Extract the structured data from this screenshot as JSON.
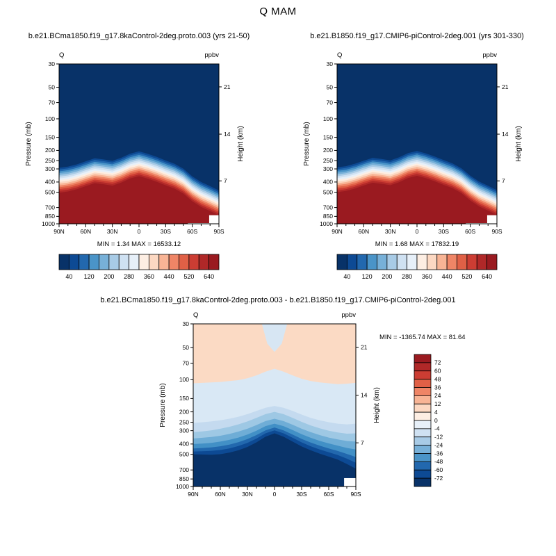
{
  "title": "Q MAM",
  "chart_data": [
    {
      "type": "contour",
      "id": "control-8ka",
      "title": "b.e21.BCma1850.f19_g17.8kaControl-2deg.proto.003 (yrs 21-50)",
      "var_label": "Q",
      "units": "ppbv",
      "stats": "MIN =  1.34  MAX = 16533.12",
      "axes": {
        "ylabel": "Pressure (mb)",
        "right_label": "Height (km)",
        "y_range": [
          30,
          1000
        ],
        "y_ticks": [
          30,
          50,
          70,
          100,
          150,
          200,
          250,
          300,
          400,
          500,
          700,
          850,
          1000
        ],
        "height_ticks": [
          {
            "label": "21",
            "p": 49.6
          },
          {
            "label": "14",
            "p": 140
          },
          {
            "label": "7",
            "p": 390
          }
        ],
        "x_ticks": [
          "90N",
          "60N",
          "30N",
          "0",
          "30S",
          "60S",
          "90S"
        ],
        "x_tick_lats": [
          90,
          60,
          30,
          0,
          -30,
          -60,
          -90
        ]
      },
      "lats": [
        90,
        80,
        70,
        60,
        50,
        40,
        30,
        20,
        10,
        0,
        -10,
        -20,
        -30,
        -40,
        -50,
        -60,
        -70,
        -80,
        -90
      ],
      "red_top": [
        505,
        492,
        468,
        438,
        410,
        420,
        433,
        405,
        370,
        352,
        372,
        398,
        430,
        462,
        515,
        610,
        690,
        755,
        830
      ],
      "band_factor": 0.58,
      "surface": [
        {
          "lats": [
            -79,
            -90
          ],
          "p_top": 828
        },
        {
          "lats": [
            -55,
            -90
          ],
          "p_top": 985
        }
      ],
      "palette": [
        "#083268",
        "#0d4a94",
        "#2268ae",
        "#4a94c8",
        "#77b0d8",
        "#a8cbe6",
        "#cfe1f2",
        "#e7f0f9",
        "#fdeee3",
        "#fcd8c2",
        "#f8b495",
        "#ef8566",
        "#e06046",
        "#cc3d33",
        "#b02828",
        "#9a1a20"
      ],
      "colorbar_labels": [
        "40",
        "120",
        "200",
        "280",
        "360",
        "440",
        "520",
        "640"
      ]
    },
    {
      "type": "contour",
      "id": "picontrol",
      "title": "b.e21.B1850.f19_g17.CMIP6-piControl-2deg.001 (yrs 301-330)",
      "var_label": "Q",
      "units": "ppbv",
      "stats": "MIN =  1.68  MAX = 17832.19",
      "axes": {
        "ylabel": "Pressure (mb)",
        "right_label": "Height (km)",
        "y_range": [
          30,
          1000
        ],
        "y_ticks": [
          30,
          50,
          70,
          100,
          150,
          200,
          250,
          300,
          400,
          500,
          700,
          850,
          1000
        ],
        "height_ticks": [
          {
            "label": "21",
            "p": 49.6
          },
          {
            "label": "14",
            "p": 140
          },
          {
            "label": "7",
            "p": 390
          }
        ],
        "x_ticks": [
          "90N",
          "60N",
          "30N",
          "0",
          "30S",
          "60S",
          "90S"
        ],
        "x_tick_lats": [
          90,
          60,
          30,
          0,
          -30,
          -60,
          -90
        ]
      },
      "lats": [
        90,
        80,
        70,
        60,
        50,
        40,
        30,
        20,
        10,
        0,
        -10,
        -20,
        -30,
        -40,
        -50,
        -60,
        -70,
        -80,
        -90
      ],
      "red_top": [
        500,
        487,
        462,
        432,
        406,
        416,
        429,
        401,
        366,
        349,
        368,
        394,
        426,
        458,
        510,
        600,
        683,
        748,
        824
      ],
      "band_factor": 0.58,
      "surface": [
        {
          "lats": [
            -79,
            -90
          ],
          "p_top": 828
        },
        {
          "lats": [
            -55,
            -90
          ],
          "p_top": 985
        }
      ],
      "palette": [
        "#083268",
        "#0d4a94",
        "#2268ae",
        "#4a94c8",
        "#77b0d8",
        "#a8cbe6",
        "#cfe1f2",
        "#e7f0f9",
        "#fdeee3",
        "#fcd8c2",
        "#f8b495",
        "#ef8566",
        "#e06046",
        "#cc3d33",
        "#b02828",
        "#9a1a20"
      ],
      "colorbar_labels": [
        "40",
        "120",
        "200",
        "280",
        "360",
        "440",
        "520",
        "640"
      ]
    },
    {
      "type": "diff",
      "id": "difference",
      "title": "b.e21.BCma1850.f19_g17.8kaControl-2deg.proto.003 - b.e21.B1850.f19_g17.CMIP6-piControl-2deg.001",
      "var_label": "Q",
      "units": "ppbv",
      "stats": "MIN = -1365.74  MAX =  81.64",
      "axes": {
        "ylabel": "Pressure (mb)",
        "right_label": "Height (km)",
        "y_range": [
          30,
          1000
        ],
        "y_ticks": [
          30,
          50,
          70,
          100,
          150,
          200,
          250,
          300,
          400,
          500,
          700,
          850,
          1000
        ],
        "height_ticks": [
          {
            "label": "21",
            "p": 49.6
          },
          {
            "label": "14",
            "p": 140
          },
          {
            "label": "7",
            "p": 390
          }
        ],
        "x_ticks": [
          "90N",
          "60N",
          "30N",
          "0",
          "30S",
          "60S",
          "90S"
        ],
        "x_tick_lats": [
          90,
          60,
          30,
          0,
          -30,
          -60,
          -90
        ]
      },
      "lats": [
        90,
        80,
        70,
        60,
        50,
        40,
        30,
        20,
        10,
        0,
        -10,
        -20,
        -30,
        -40,
        -50,
        -60,
        -70,
        -80,
        -90
      ],
      "regions": {
        "top_color": "#fbdac4",
        "upper_color": "#d9e8f5",
        "upper_boundary": [
          108,
          107,
          106,
          105,
          103,
          101,
          97,
          91,
          84,
          79,
          84,
          91,
          98,
          103,
          106,
          108,
          110,
          109,
          107
        ],
        "notch_color": "#d7e6f3",
        "notch": [
          [
            14,
            30
          ],
          [
            -14,
            30
          ],
          [
            -8,
            46
          ],
          [
            0,
            55
          ],
          [
            8,
            46
          ]
        ],
        "bands": [
          {
            "color": "#c4daef",
            "curve": [
              255,
              250,
              246,
              240,
              232,
              222,
              210,
              196,
              183,
              176,
              183,
              196,
              212,
              228,
              240,
              250,
              258,
              262,
              258
            ]
          },
          {
            "color": "#9ec8e4",
            "curve": [
              310,
              305,
              298,
              288,
              276,
              262,
              246,
              228,
              210,
              200,
              210,
              228,
              248,
              268,
              285,
              300,
              312,
              320,
              318
            ]
          },
          {
            "color": "#6fadd6",
            "curve": [
              355,
              350,
              344,
              335,
              322,
              306,
              288,
              266,
              244,
              232,
              244,
              264,
              288,
              310,
              330,
              348,
              362,
              375,
              380
            ]
          },
          {
            "color": "#4290c6",
            "curve": [
              400,
              396,
              390,
              380,
              366,
              348,
              326,
              300,
              272,
              258,
              272,
              296,
              324,
              350,
              374,
              395,
              415,
              435,
              450
            ]
          },
          {
            "color": "#2268ae",
            "curve": [
              440,
              436,
              430,
              420,
              405,
              385,
              360,
              330,
              298,
              280,
              298,
              326,
              358,
              388,
              415,
              440,
              465,
              495,
              530
            ]
          },
          {
            "color": "#0d4a94",
            "curve": [
              470,
              468,
              464,
              455,
              440,
              418,
              390,
              356,
              318,
              298,
              318,
              350,
              386,
              420,
              450,
              478,
              508,
              548,
              600
            ]
          },
          {
            "color": "#083268",
            "curve": [
              500,
              502,
              505,
              498,
              482,
              458,
              426,
              386,
              342,
              318,
              342,
              380,
              422,
              458,
              492,
              525,
              560,
              615,
              680
            ]
          }
        ]
      },
      "surface": [
        {
          "lats": [
            -77,
            -90
          ],
          "p_top": 835
        }
      ],
      "palette": [
        "#9a1a20",
        "#b02828",
        "#cc3d33",
        "#e06046",
        "#ef8566",
        "#f8b495",
        "#fcd8c2",
        "#fdeee3",
        "#e7f0f9",
        "#cfe1f2",
        "#a8cbe6",
        "#77b0d8",
        "#4a94c8",
        "#2268ae",
        "#0d4a94",
        "#083268"
      ],
      "colorbar_labels": [
        "72",
        "60",
        "48",
        "36",
        "24",
        "12",
        "4",
        "0",
        "-4",
        "-12",
        "-24",
        "-36",
        "-48",
        "-60",
        "-72"
      ]
    }
  ]
}
